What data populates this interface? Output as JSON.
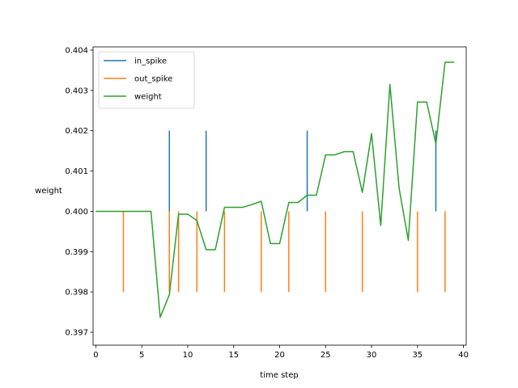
{
  "chart_data": {
    "type": "line",
    "title": "",
    "xlabel": "time step",
    "ylabel": "weight",
    "xlim": [
      -0.3,
      40.3
    ],
    "ylim": [
      0.39668,
      0.40408
    ],
    "xticks": [
      0,
      5,
      10,
      15,
      20,
      25,
      30,
      35,
      40
    ],
    "xtick_labels": [
      "0",
      "5",
      "10",
      "15",
      "20",
      "25",
      "30",
      "35",
      "40"
    ],
    "yticks": [
      0.397,
      0.398,
      0.399,
      0.4,
      0.401,
      0.402,
      0.403,
      0.404
    ],
    "ytick_labels": [
      "0.397",
      "0.398",
      "0.399",
      "0.400",
      "0.401",
      "0.402",
      "0.403",
      "0.404"
    ],
    "grid": false,
    "legend_position": "top-left",
    "series": [
      {
        "name": "in_spike",
        "kind": "vlines",
        "color": "#1f77b4",
        "x": [
          8,
          12,
          23,
          37
        ],
        "ymin": 0.4,
        "ymax": 0.402
      },
      {
        "name": "out_spike",
        "kind": "vlines",
        "color": "#ff7f0e",
        "x": [
          3,
          8,
          9,
          11,
          14,
          18,
          21,
          25,
          29,
          35,
          38
        ],
        "ymin": 0.398,
        "ymax": 0.4
      },
      {
        "name": "weight",
        "kind": "line",
        "color": "#2ca02c",
        "x": [
          0,
          1,
          2,
          3,
          4,
          5,
          6,
          7,
          8,
          9,
          10,
          11,
          12,
          13,
          14,
          15,
          16,
          17,
          18,
          19,
          20,
          21,
          22,
          23,
          24,
          25,
          26,
          27,
          28,
          29,
          30,
          31,
          32,
          33,
          34,
          35,
          36,
          37,
          38,
          39
        ],
        "y": [
          0.4,
          0.4,
          0.4,
          0.4,
          0.4,
          0.4,
          0.4,
          0.39737,
          0.39793,
          0.39993,
          0.39993,
          0.39977,
          0.39905,
          0.39905,
          0.4001,
          0.4001,
          0.4001,
          0.40017,
          0.40025,
          0.3992,
          0.3992,
          0.40022,
          0.40022,
          0.4004,
          0.4004,
          0.4014,
          0.4014,
          0.40148,
          0.40148,
          0.40047,
          0.40193,
          0.39965,
          0.40315,
          0.40057,
          0.39928,
          0.40271,
          0.40271,
          0.40168,
          0.4037,
          0.4037
        ]
      }
    ]
  }
}
